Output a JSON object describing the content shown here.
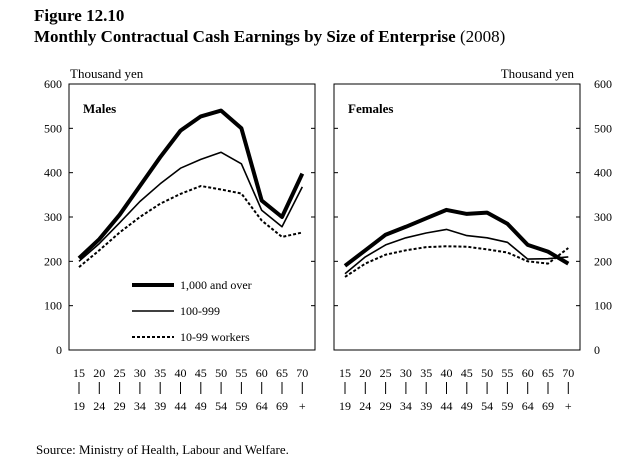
{
  "figure": {
    "label": "Figure 12.10",
    "title": "Monthly Contractual Cash Earnings by Size of Enterprise",
    "title_suffix": "(2008)"
  },
  "source": "Source:  Ministry of Health, Labour and Welfare.",
  "chart_data": [
    {
      "type": "line",
      "panel_label": "Males",
      "ylabel": "Thousand yen",
      "ylim": [
        0,
        600
      ],
      "yticks": [
        0,
        100,
        200,
        300,
        400,
        500,
        600
      ],
      "categories": [
        "15-19",
        "20-24",
        "25-29",
        "30-34",
        "35-39",
        "40-44",
        "45-49",
        "50-54",
        "55-59",
        "60-64",
        "65-69",
        "70+"
      ],
      "tick_top": [
        "15",
        "20",
        "25",
        "30",
        "35",
        "40",
        "45",
        "50",
        "55",
        "60",
        "65",
        "70"
      ],
      "tick_bottom": [
        "19",
        "24",
        "29",
        "34",
        "39",
        "44",
        "49",
        "54",
        "59",
        "64",
        "69",
        "+"
      ],
      "legend_position": "bottom-center",
      "series": [
        {
          "name": "1,000 and over",
          "style": "thick",
          "values": [
            207,
            250,
            305,
            370,
            435,
            495,
            527,
            540,
            500,
            337,
            300,
            398
          ]
        },
        {
          "name": "100-999",
          "style": "thin",
          "values": [
            200,
            240,
            287,
            335,
            375,
            410,
            430,
            446,
            420,
            315,
            278,
            368
          ]
        },
        {
          "name": "10-99 workers",
          "style": "dashed",
          "values": [
            187,
            225,
            265,
            300,
            330,
            352,
            370,
            362,
            353,
            292,
            255,
            265
          ]
        }
      ]
    },
    {
      "type": "line",
      "panel_label": "Females",
      "ylabel": "Thousand yen",
      "ylim": [
        0,
        600
      ],
      "yticks": [
        0,
        100,
        200,
        300,
        400,
        500,
        600
      ],
      "categories": [
        "15-19",
        "20-24",
        "25-29",
        "30-34",
        "35-39",
        "40-44",
        "45-49",
        "50-54",
        "55-59",
        "60-64",
        "65-69",
        "70+"
      ],
      "tick_top": [
        "15",
        "20",
        "25",
        "30",
        "35",
        "40",
        "45",
        "50",
        "55",
        "60",
        "65",
        "70"
      ],
      "tick_bottom": [
        "19",
        "24",
        "29",
        "34",
        "39",
        "44",
        "49",
        "54",
        "59",
        "64",
        "69",
        "+"
      ],
      "series": [
        {
          "name": "1,000 and over",
          "style": "thick",
          "values": [
            190,
            225,
            260,
            278,
            297,
            316,
            307,
            310,
            285,
            237,
            222,
            195
          ]
        },
        {
          "name": "100-999",
          "style": "thin",
          "values": [
            172,
            210,
            237,
            253,
            264,
            272,
            258,
            253,
            243,
            205,
            206,
            210
          ]
        },
        {
          "name": "10-99 workers",
          "style": "dashed",
          "values": [
            165,
            195,
            215,
            225,
            232,
            234,
            233,
            227,
            220,
            200,
            195,
            230
          ]
        }
      ]
    }
  ]
}
